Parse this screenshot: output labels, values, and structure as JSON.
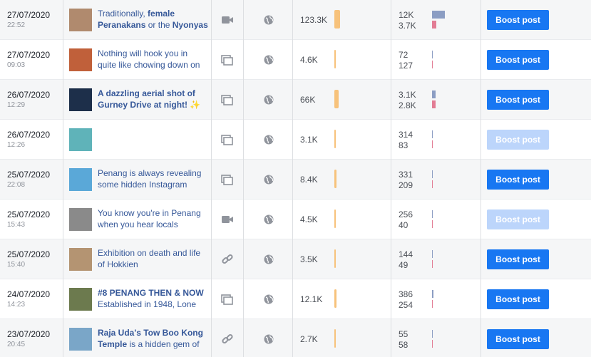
{
  "rows": [
    {
      "date": "27/07/2020",
      "time": "22:52",
      "text": [
        {
          "text": "Traditionally, ",
          "bold": false
        },
        {
          "text": "female Peranakans",
          "bold": true
        },
        {
          "text": " or the ",
          "bold": false
        },
        {
          "text": "Nyonyas",
          "bold": true
        }
      ],
      "post_type": "video",
      "reach": {
        "value": 123300,
        "label": "123.3K"
      },
      "clicks": {
        "value": 12000,
        "label": "12K"
      },
      "reactions": {
        "value": 3700,
        "label": "3.7K"
      },
      "button": "Boost post",
      "enabled": true
    },
    {
      "date": "27/07/2020",
      "time": "09:03",
      "text": [
        {
          "text": "Nothing will hook you in quite like chowing down on",
          "bold": false
        }
      ],
      "post_type": "album",
      "reach": {
        "value": 4600,
        "label": "4.6K"
      },
      "clicks": 72,
      "reactions": 127,
      "button": "Boost post",
      "enabled": true
    },
    {
      "date": "26/07/2020",
      "time": "12:29",
      "text": [
        {
          "text": "A dazzling aerial shot of Gurney Drive at night! ✨",
          "bold": true
        }
      ],
      "post_type": "album",
      "reach": {
        "value": 66000,
        "label": "66K"
      },
      "clicks": {
        "value": 3100,
        "label": "3.1K"
      },
      "reactions": {
        "value": 2800,
        "label": "2.8K"
      },
      "button": "Boost post",
      "enabled": true
    },
    {
      "date": "26/07/2020",
      "time": "12:26",
      "text": [],
      "post_type": "album",
      "reach": {
        "value": 3100,
        "label": "3.1K"
      },
      "clicks": 314,
      "reactions": 83,
      "button": "Boost post",
      "enabled": false
    },
    {
      "date": "25/07/2020",
      "time": "22:08",
      "text": [
        {
          "text": "Penang is always revealing some hidden Instagram",
          "bold": false
        }
      ],
      "post_type": "album",
      "reach": {
        "value": 8400,
        "label": "8.4K"
      },
      "clicks": 331,
      "reactions": 209,
      "button": "Boost post",
      "enabled": true
    },
    {
      "date": "25/07/2020",
      "time": "15:43",
      "text": [
        {
          "text": "You know you're in Penang when you hear locals",
          "bold": false
        }
      ],
      "post_type": "video",
      "reach": {
        "value": 4500,
        "label": "4.5K"
      },
      "clicks": 256,
      "reactions": 40,
      "button": "Boost post",
      "enabled": false
    },
    {
      "date": "25/07/2020",
      "time": "15:40",
      "text": [
        {
          "text": "Exhibition on death and life of Hokkien",
          "bold": false
        }
      ],
      "post_type": "link",
      "reach": {
        "value": 3500,
        "label": "3.5K"
      },
      "clicks": 144,
      "reactions": 49,
      "button": "Boost post",
      "enabled": true
    },
    {
      "date": "24/07/2020",
      "time": "14:23",
      "text": [
        {
          "text": "#8 PENANG THEN & NOW",
          "bold": true
        },
        {
          "text": " Established in 1948, Lone",
          "bold": false
        }
      ],
      "post_type": "album",
      "reach": {
        "value": 12100,
        "label": "12.1K"
      },
      "clicks": 386,
      "reactions": 254,
      "button": "Boost post",
      "enabled": true
    },
    {
      "date": "23/07/2020",
      "time": "20:45",
      "text": [
        {
          "text": "Raja Uda's Tow Boo Kong Temple",
          "bold": true
        },
        {
          "text": " is a hidden gem of",
          "bold": false
        }
      ],
      "post_type": "link",
      "reach": {
        "value": 2700,
        "label": "2.7K"
      },
      "clicks": 55,
      "reactions": 58,
      "button": "Boost post",
      "enabled": true
    }
  ]
}
